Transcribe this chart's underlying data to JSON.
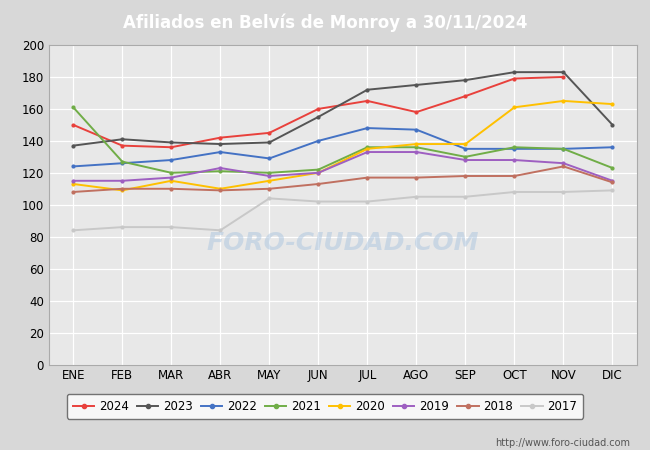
{
  "title": "Afiliados en Belvís de Monroy a 30/11/2024",
  "title_color": "#ffffff",
  "title_bg": "#4f81bd",
  "months": [
    "ENE",
    "FEB",
    "MAR",
    "ABR",
    "MAY",
    "JUN",
    "JUL",
    "AGO",
    "SEP",
    "OCT",
    "NOV",
    "DIC"
  ],
  "ylim": [
    0,
    200
  ],
  "yticks": [
    0,
    20,
    40,
    60,
    80,
    100,
    120,
    140,
    160,
    180,
    200
  ],
  "series": {
    "2024": {
      "color": "#e8413c",
      "data": [
        150,
        137,
        136,
        142,
        145,
        160,
        165,
        158,
        168,
        179,
        180,
        null
      ]
    },
    "2023": {
      "color": "#555555",
      "data": [
        137,
        141,
        139,
        138,
        139,
        155,
        172,
        175,
        178,
        183,
        183,
        150
      ]
    },
    "2022": {
      "color": "#4472c4",
      "data": [
        124,
        126,
        128,
        133,
        129,
        140,
        148,
        147,
        135,
        135,
        135,
        136
      ]
    },
    "2021": {
      "color": "#70ad47",
      "data": [
        161,
        127,
        120,
        121,
        120,
        122,
        136,
        136,
        130,
        136,
        135,
        123
      ]
    },
    "2020": {
      "color": "#ffc000",
      "data": [
        113,
        109,
        115,
        110,
        115,
        120,
        135,
        138,
        138,
        161,
        165,
        163
      ]
    },
    "2019": {
      "color": "#9e5fc1",
      "data": [
        115,
        115,
        117,
        123,
        118,
        120,
        133,
        133,
        128,
        128,
        126,
        115
      ]
    },
    "2018": {
      "color": "#c07060",
      "data": [
        108,
        110,
        110,
        109,
        110,
        113,
        117,
        117,
        118,
        118,
        124,
        114
      ]
    },
    "2017": {
      "color": "#c8c8c8",
      "data": [
        84,
        86,
        86,
        84,
        104,
        102,
        102,
        105,
        105,
        108,
        108,
        109
      ]
    }
  },
  "watermark": "FORO-CIUDAD.COM",
  "url": "http://www.foro-ciudad.com",
  "fig_bg": "#d8d8d8",
  "plot_bg": "#e8e8e8",
  "grid_color": "#ffffff"
}
